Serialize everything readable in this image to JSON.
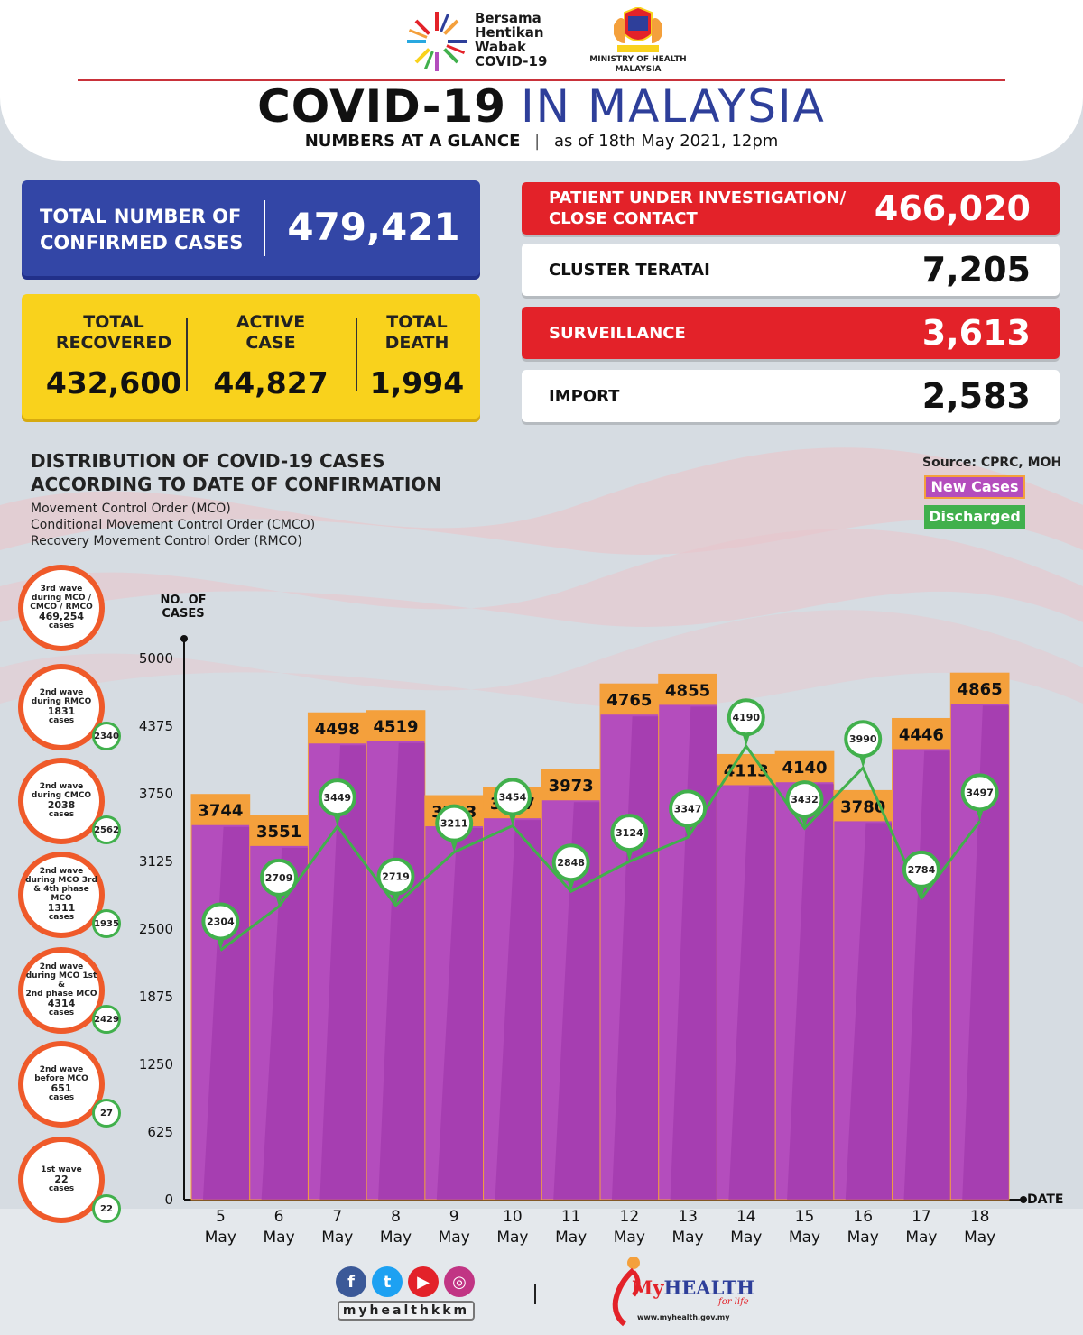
{
  "header": {
    "campaign_lines": [
      "Bersama",
      "Hentikan",
      "Wabak",
      "COVID-19"
    ],
    "ministry_lines": [
      "MINISTRY OF HEALTH",
      "MALAYSIA"
    ],
    "title_part1": "COVID-19",
    "title_part2": "IN MALAYSIA",
    "subtitle_part1": "NUMBERS AT A GLANCE",
    "subtitle_separator": "|",
    "subtitle_part2": "as of 18th May 2021, 12pm"
  },
  "confirmed": {
    "label_line1": "TOTAL NUMBER OF",
    "label_line2": "CONFIRMED CASES",
    "value": "479,421"
  },
  "summary": {
    "recovered": {
      "label_line1": "TOTAL",
      "label_line2": "RECOVERED",
      "value": "432,600"
    },
    "active": {
      "label_line1": "ACTIVE",
      "label_line2": "CASE",
      "value": "44,827"
    },
    "death": {
      "label_line1": "TOTAL",
      "label_line2": "DEATH",
      "value": "1,994"
    }
  },
  "stats": {
    "pui": {
      "label_line1": "PATIENT UNDER INVESTIGATION/",
      "label_line2": "CLOSE CONTACT",
      "value": "466,020"
    },
    "cluster": {
      "label": "CLUSTER TERATAI",
      "value": "7,205"
    },
    "surveillance": {
      "label": "SURVEILLANCE",
      "value": "3,613"
    },
    "import": {
      "label": "IMPORT",
      "value": "2,583"
    }
  },
  "distribution": {
    "title_line1": "DISTRIBUTION OF COVID-19 CASES",
    "title_line2": "ACCORDING TO DATE OF CONFIRMATION",
    "notes": [
      "Movement Control Order (MCO)",
      "Conditional Movement Control Order (CMCO)",
      "Recovery Movement Control Order (RMCO)"
    ],
    "source": "Source: CPRC, MOH"
  },
  "waves": [
    {
      "lines": [
        "3rd wave",
        "during MCO /",
        "CMCO / RMCO"
      ],
      "count": "469,254",
      "unit": "cases",
      "discharged": ""
    },
    {
      "lines": [
        "2nd wave",
        "during RMCO"
      ],
      "count": "1831",
      "unit": "cases",
      "discharged": "2340"
    },
    {
      "lines": [
        "2nd wave",
        "during CMCO"
      ],
      "count": "2038",
      "unit": "cases",
      "discharged": "2562"
    },
    {
      "lines": [
        "2nd wave",
        "during MCO 3rd",
        "& 4th phase MCO"
      ],
      "count": "1311",
      "unit": "cases",
      "discharged": "1935"
    },
    {
      "lines": [
        "2nd wave",
        "during MCO 1st &",
        "2nd phase MCO"
      ],
      "count": "4314",
      "unit": "cases",
      "discharged": "2429"
    },
    {
      "lines": [
        "2nd wave",
        "before MCO"
      ],
      "count": "651",
      "unit": "cases",
      "discharged": "27"
    },
    {
      "lines": [
        "1st wave"
      ],
      "count": "22",
      "unit": "cases",
      "discharged": "22"
    }
  ],
  "chart_data": {
    "type": "bar",
    "title": "DISTRIBUTION OF COVID-19 CASES ACCORDING TO DATE OF CONFIRMATION",
    "ylabel": "NO. OF CASES",
    "xlabel": "DATE",
    "ylim": [
      0,
      5000
    ],
    "yticks": [
      0,
      625,
      1250,
      1875,
      2500,
      3125,
      3750,
      4375,
      5000
    ],
    "categories": [
      "5 May",
      "6 May",
      "7 May",
      "8 May",
      "9 May",
      "10 May",
      "11 May",
      "12 May",
      "13 May",
      "14 May",
      "15 May",
      "16 May",
      "17 May",
      "18 May"
    ],
    "series": [
      {
        "name": "New Cases",
        "type": "bar",
        "color": "#b44dbd",
        "values": [
          3744,
          3551,
          4498,
          4519,
          3733,
          3807,
          3973,
          4765,
          4855,
          4113,
          4140,
          3780,
          4446,
          4865
        ]
      },
      {
        "name": "Discharged",
        "type": "line",
        "color": "#41b04c",
        "values": [
          2304,
          2709,
          3449,
          2719,
          3211,
          3454,
          2848,
          3124,
          3347,
          4190,
          3432,
          3990,
          2784,
          3497
        ]
      }
    ],
    "legend": "top-right",
    "grid": false
  },
  "footer": {
    "social_icons": [
      "facebook-icon",
      "twitter-icon",
      "youtube-icon",
      "instagram-icon"
    ],
    "handle": "myhealthkkm",
    "separator": "|",
    "brand_my": "My",
    "brand_health": "HEALTH",
    "brand_tag": "for life",
    "brand_url": "www.myhealth.gov.my"
  }
}
